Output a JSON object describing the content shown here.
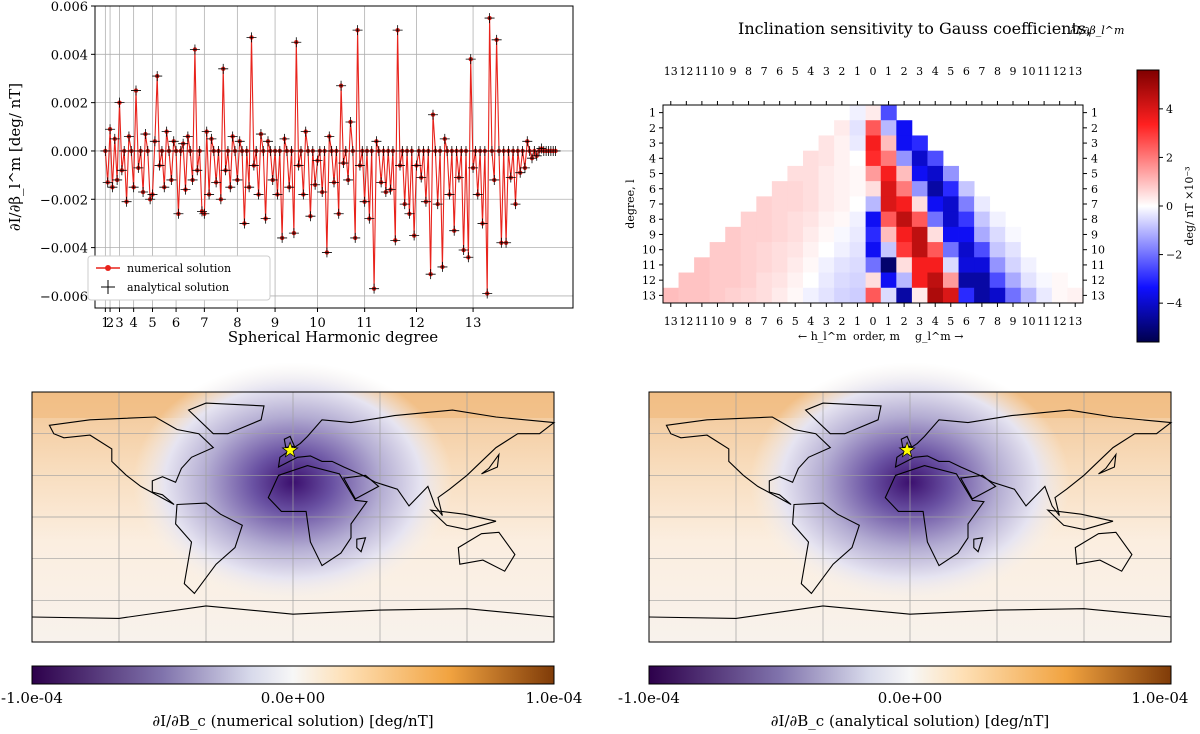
{
  "chart_data": [
    {
      "panel": "line",
      "type": "line",
      "ylabel": "∂I/∂β_l^m [deg/ nT]",
      "xlabel": "Spherical Harmonic degree",
      "ylim": [
        -0.0065,
        0.006
      ],
      "y_ticks": [
        "0.006",
        "0.004",
        "0.002",
        "0.000",
        "−0.002",
        "−0.004",
        "−0.006"
      ],
      "y_tick_values": [
        0.006,
        0.004,
        0.002,
        0.0,
        -0.002,
        -0.004,
        -0.006
      ],
      "x_tick_labels": [
        "1",
        "2",
        "3",
        "4",
        "5",
        "6",
        "7",
        "8",
        "9",
        "10",
        "11",
        "12",
        "13"
      ],
      "x_tick_values": [
        1,
        3,
        7,
        13,
        21,
        31,
        43,
        57,
        73,
        91,
        111,
        133,
        157
      ],
      "x_max": 196,
      "legend": [
        "numerical solution",
        "analytical solution"
      ],
      "legend_position": "lower-left",
      "series_colors": {
        "numerical": "#e8231c",
        "analytical": "#000000"
      },
      "series_note": "Values estimated from the chart; both series overlap (numerical = analytical).",
      "values": [
        0.0,
        -0.0013,
        0.0009,
        -0.0015,
        0.0005,
        -0.0012,
        0.002,
        -0.0008,
        0.0,
        -0.0021,
        0.0006,
        0.0,
        -0.0015,
        0.0025,
        -0.0007,
        0.0,
        -0.0017,
        0.0007,
        0.0,
        -0.002,
        -0.0018,
        0.0004,
        0.0031,
        -0.0006,
        0.0,
        -0.0015,
        0.0008,
        0.0,
        -0.0012,
        0.0004,
        0.0,
        -0.0026,
        0.0,
        0.0003,
        -0.0016,
        0.0006,
        0.0,
        -0.0012,
        0.0042,
        -0.0008,
        0.0,
        -0.0025,
        -0.0026,
        0.0008,
        -0.0018,
        0.0005,
        0.0,
        -0.0013,
        0.0,
        -0.002,
        0.0034,
        -0.0008,
        0.0,
        -0.0015,
        0.0006,
        0.0,
        -0.0012,
        0.0004,
        0.0,
        -0.003,
        0.0,
        -0.0015,
        0.0047,
        -0.0006,
        0.0,
        -0.0018,
        0.0007,
        0.0,
        -0.0028,
        0.0004,
        0.0,
        -0.0012,
        0.0,
        -0.0018,
        0.0,
        -0.0036,
        0.0005,
        0.0,
        -0.0015,
        0.0,
        -0.0034,
        0.0045,
        -0.0006,
        0.0,
        -0.0018,
        0.0008,
        0.0,
        -0.0027,
        0.0,
        -0.0014,
        -0.0004,
        0.0,
        -0.0017,
        0.0,
        -0.0042,
        0.0006,
        0.0,
        -0.0013,
        0.0,
        -0.0026,
        0.0027,
        -0.0005,
        0.0,
        -0.0012,
        0.0012,
        0.0,
        -0.0036,
        0.005,
        -0.0006,
        0.0,
        -0.0021,
        0.0,
        -0.0028,
        0.0,
        -0.0057,
        0.0004,
        0.0,
        -0.0013,
        0.0,
        -0.0017,
        0.0,
        -0.0016,
        0.0,
        -0.0037,
        0.005,
        -0.0006,
        0.0,
        -0.0022,
        0.0,
        -0.0026,
        0.0,
        -0.0035,
        -0.0006,
        0.0,
        -0.0011,
        0.0,
        -0.0021,
        0.0,
        -0.0051,
        0.0015,
        0.0,
        -0.0022,
        0.0,
        -0.0048,
        0.0005,
        0.0,
        -0.0018,
        0.0,
        -0.0033,
        0.0,
        -0.0011,
        0.0,
        -0.0041,
        0.0,
        -0.0044,
        0.0038,
        -0.0007,
        0.0,
        -0.0018,
        0.0,
        -0.003,
        0.0,
        -0.0059,
        0.0055,
        0.0,
        -0.0012,
        0.0046,
        0.0,
        -0.0038,
        0.0,
        -0.0038,
        0.0,
        -0.0011,
        0.0,
        -0.0022,
        0.0,
        -0.0009,
        0.0,
        -0.0007,
        0.0004,
        0.0,
        -0.0003,
        0.0,
        -0.0002,
        0.0,
        0.0001,
        0.0,
        0.0,
        0.0,
        0.0,
        0.0,
        0.0
      ]
    },
    {
      "panel": "heatmap",
      "type": "heatmap",
      "title": "Inclination sensitivity to Gauss coefficients,",
      "title_math": "∂I/∂β_l^m",
      "ylabel": "degree, l",
      "x_labels": [
        "13",
        "12",
        "11",
        "10",
        "9",
        "8",
        "7",
        "6",
        "5",
        "4",
        "3",
        "2",
        "1",
        "0",
        "1",
        "2",
        "3",
        "4",
        "5",
        "6",
        "7",
        "8",
        "9",
        "10",
        "11",
        "12",
        "13"
      ],
      "y_labels": [
        "1",
        "2",
        "3",
        "4",
        "5",
        "6",
        "7",
        "8",
        "9",
        "10",
        "11",
        "12",
        "13"
      ],
      "xlabel_left": "← h_l^m",
      "xlabel_mid": "order, m",
      "xlabel_right": "g_l^m →",
      "colorbar": {
        "label": "deg/ nT ×10⁻³",
        "ticks": [
          "4",
          "2",
          "0",
          "−2",
          "−4"
        ],
        "tick_values": [
          4,
          2,
          0,
          -2,
          -4
        ],
        "range": [
          -5.6,
          5.6
        ]
      },
      "rows_h": [
        [
          -0.2
        ],
        [
          0.3,
          -0.4
        ],
        [
          0.4,
          0.2,
          -0.3
        ],
        [
          0.5,
          0.4,
          0.2,
          0.0
        ],
        [
          0.5,
          0.5,
          0.3,
          0.2,
          0.1
        ],
        [
          0.6,
          0.6,
          0.5,
          0.3,
          0.2,
          0.1
        ],
        [
          0.7,
          0.6,
          0.6,
          0.5,
          0.3,
          0.2,
          0.0
        ],
        [
          0.7,
          0.7,
          0.6,
          0.5,
          0.4,
          0.2,
          0.1,
          -0.2
        ],
        [
          0.8,
          0.7,
          0.7,
          0.6,
          0.5,
          0.3,
          0.1,
          -0.1,
          -0.3
        ],
        [
          0.8,
          0.8,
          0.7,
          0.6,
          0.5,
          0.4,
          0.2,
          0.0,
          -0.2,
          -0.4
        ],
        [
          0.9,
          0.8,
          0.8,
          0.7,
          0.6,
          0.5,
          0.3,
          0.1,
          -0.2,
          -0.4,
          -0.5
        ],
        [
          0.9,
          0.9,
          0.8,
          0.8,
          0.7,
          0.5,
          0.4,
          0.2,
          0.0,
          -0.3,
          -0.5,
          -0.6
        ],
        [
          1.0,
          0.9,
          0.9,
          0.8,
          0.7,
          0.6,
          0.5,
          0.3,
          0.1,
          -0.2,
          -0.4,
          -0.6,
          -0.7
        ]
      ],
      "rows_g": [
        [
          0.3,
          -2.5
        ],
        [
          2.5,
          -1.0,
          -3.5
        ],
        [
          3.5,
          1.0,
          -3.5,
          -3.0
        ],
        [
          3.2,
          2.0,
          -1.5,
          -4.0,
          -2.5
        ],
        [
          1.5,
          3.5,
          1.0,
          -3.5,
          -4.0,
          -1.5
        ],
        [
          0.5,
          4.0,
          2.0,
          -1.5,
          -4.5,
          -3.0,
          -0.8
        ],
        [
          -1.0,
          4.0,
          3.5,
          0.5,
          -3.5,
          -4.0,
          -1.8,
          -0.3
        ],
        [
          -3.5,
          2.5,
          4.5,
          2.5,
          -2.0,
          -4.0,
          -2.8,
          -0.8,
          -0.2
        ],
        [
          -3.0,
          1.0,
          3.5,
          4.5,
          0.5,
          -3.5,
          -3.5,
          -1.2,
          -0.5,
          -0.1
        ],
        [
          -3.5,
          -0.8,
          3.0,
          4.5,
          2.5,
          -2.0,
          -4.0,
          -2.5,
          -0.8,
          -0.4,
          0.0
        ],
        [
          -2.0,
          -5.2,
          0.5,
          3.5,
          3.5,
          -0.5,
          -3.8,
          -3.8,
          -1.5,
          -0.6,
          -0.2,
          0.0
        ],
        [
          0.5,
          -3.5,
          -1.0,
          3.5,
          4.5,
          1.5,
          -4.5,
          -4.5,
          -2.5,
          -1.2,
          -0.4,
          -0.1,
          0.1
        ],
        [
          2.5,
          -0.5,
          -4.5,
          0.3,
          4.8,
          4.0,
          -3.0,
          -4.5,
          -4.0,
          -2.0,
          -1.0,
          -0.3,
          0.1,
          0.2
        ]
      ]
    },
    {
      "panel": "map-numerical",
      "type": "map",
      "colorbar_label": "∂I/∂B_c (numerical solution) [deg/nT]",
      "colorbar_ticks": [
        "-1.0e-04",
        "0.0e+00",
        "1.0e-04"
      ],
      "range": [
        -0.0001,
        0.0001
      ],
      "site_marker": "star",
      "site_color": "#ffff00"
    },
    {
      "panel": "map-analytical",
      "type": "map",
      "colorbar_label": "∂I/∂B_c (analytical solution)  [deg/nT]",
      "colorbar_ticks": [
        "-1.0e-04",
        "0.0e+00",
        "1.0e-04"
      ],
      "range": [
        -0.0001,
        0.0001
      ],
      "site_marker": "star",
      "site_color": "#ffff00"
    }
  ]
}
